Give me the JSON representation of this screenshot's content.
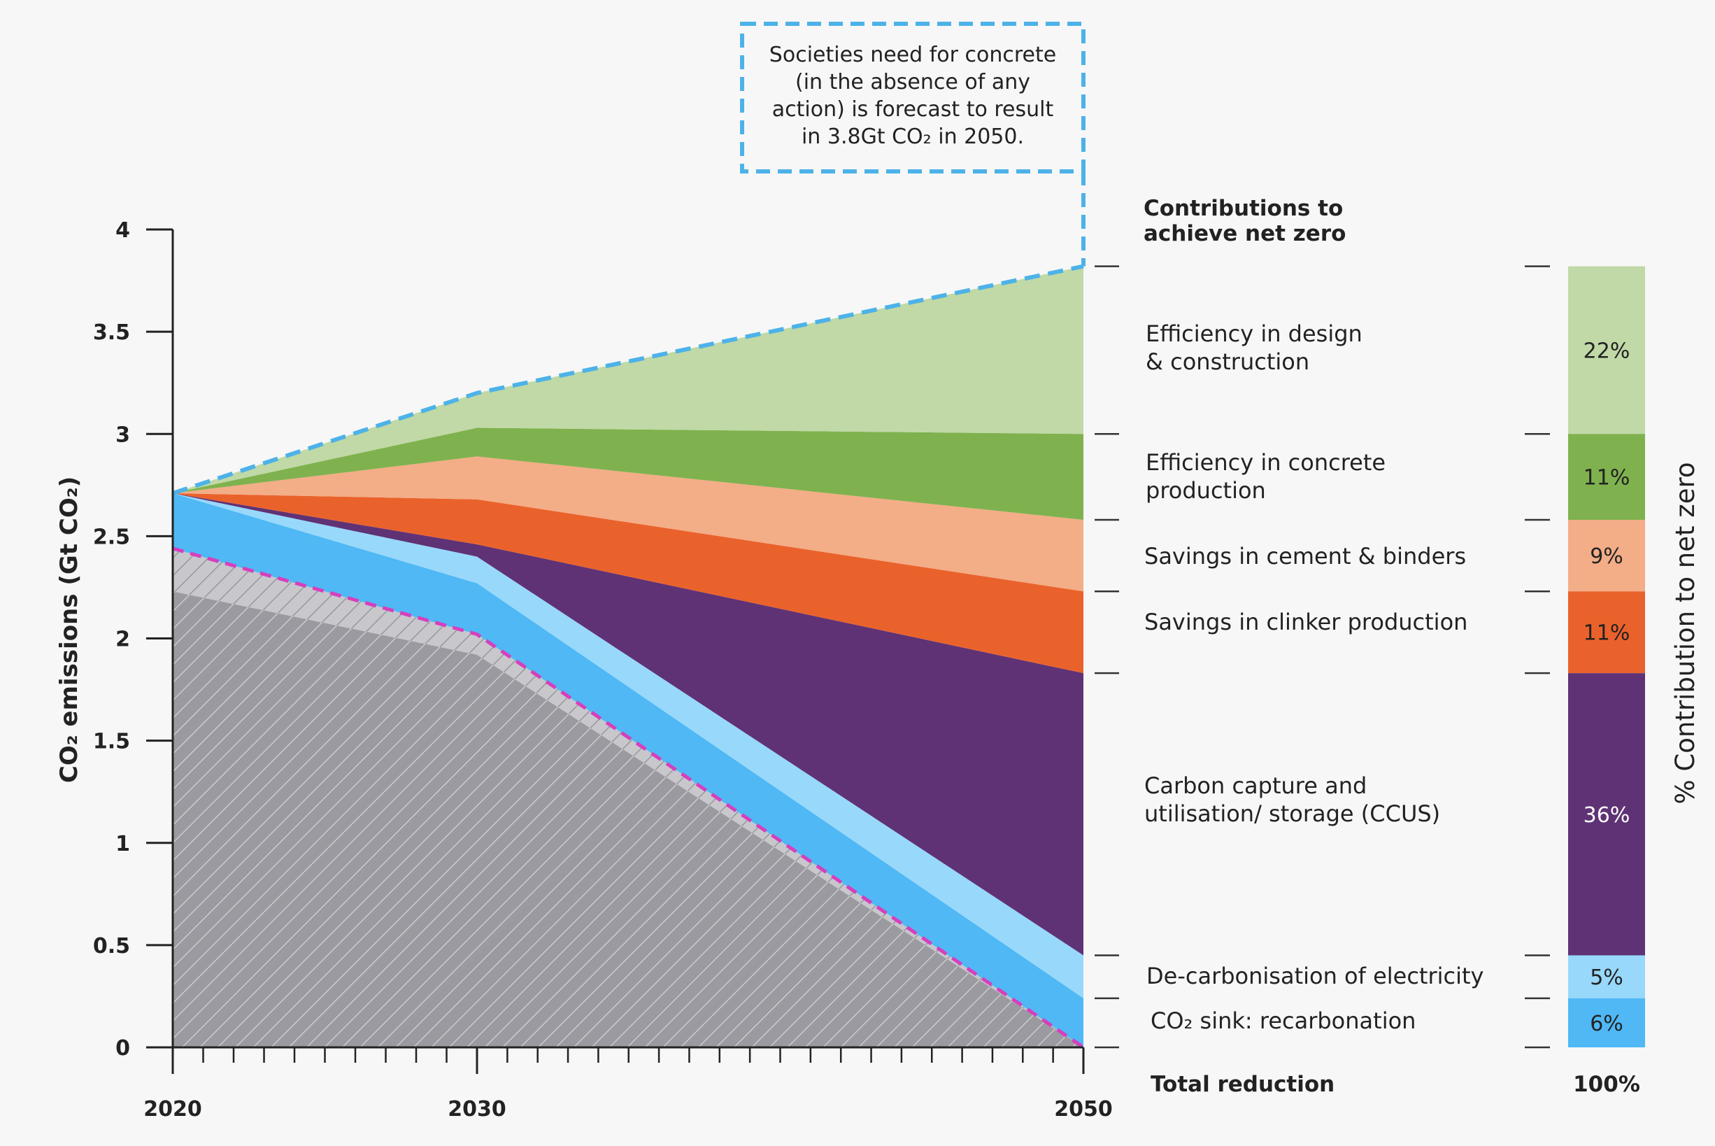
{
  "chart_data": {
    "type": "area",
    "title": "",
    "xlabel": "",
    "ylabel": "CO₂ emissions (Gt CO₂)",
    "x": [
      2020,
      2030,
      2050
    ],
    "x_ticks": [
      "2020",
      "2030",
      "2050"
    ],
    "ylim": [
      0,
      4
    ],
    "y_ticks": [
      "0",
      "0.5",
      "1",
      "1.5",
      "2",
      "2.5",
      "3",
      "3.5",
      "4"
    ],
    "grid": false,
    "forecast_line": {
      "values": [
        2.71,
        3.2,
        3.82
      ]
    },
    "net_line": {
      "values": [
        2.44,
        2.02,
        0.0
      ]
    },
    "residual_top": {
      "values": [
        2.23,
        1.92,
        0.0
      ]
    },
    "series": [
      {
        "name": "CO₂ sink: recarbonation",
        "color": "#4fb8f5",
        "lower": [
          2.44,
          2.02,
          0.0
        ],
        "upper": [
          2.71,
          2.27,
          0.24
        ],
        "share": "6%"
      },
      {
        "name": "De-carbonisation of electricity",
        "color": "#98d8fb",
        "lower": [
          2.71,
          2.27,
          0.24
        ],
        "upper": [
          2.71,
          2.4,
          0.45
        ],
        "share": "5%"
      },
      {
        "name": "Carbon capture and utilisation/ storage (CCUS)",
        "color": "#5f3275",
        "lower": [
          2.71,
          2.4,
          0.45
        ],
        "upper": [
          2.71,
          2.46,
          1.83
        ],
        "share": "36%"
      },
      {
        "name": "Savings in clinker production",
        "color": "#ea622b",
        "lower": [
          2.71,
          2.46,
          1.83
        ],
        "upper": [
          2.71,
          2.68,
          2.23
        ],
        "share": "11%"
      },
      {
        "name": "Savings in cement & binders",
        "color": "#f3ad87",
        "lower": [
          2.71,
          2.68,
          2.23
        ],
        "upper": [
          2.71,
          2.89,
          2.58
        ],
        "share": "9%"
      },
      {
        "name": "Efficiency in concrete production",
        "color": "#7fb24e",
        "lower": [
          2.71,
          2.89,
          2.58
        ],
        "upper": [
          2.71,
          3.03,
          3.0
        ],
        "share": "11%"
      },
      {
        "name": "Efficiency in design & construction",
        "color": "#c0d9a6",
        "lower": [
          2.71,
          3.03,
          3.0
        ],
        "upper": [
          2.71,
          3.2,
          3.82
        ],
        "share": "22%"
      }
    ],
    "annotation": [
      "Societies need for concrete",
      "(in the absence of any",
      "action) is forecast to result",
      "in 3.8Gt CO₂ in 2050."
    ],
    "contributions_title": [
      "Contributions to",
      "achieve net zero"
    ],
    "labels": [
      {
        "lines": [
          "Efficiency in design",
          "& construction"
        ]
      },
      {
        "lines": [
          "Efficiency in concrete",
          "production"
        ]
      },
      {
        "lines": [
          "Savings in cement & binders"
        ]
      },
      {
        "lines": [
          "Savings in clinker production"
        ]
      },
      {
        "lines": [
          "Carbon capture and",
          "utilisation/ storage (CCUS)"
        ]
      },
      {
        "lines": [
          "De-carbonisation of electricity"
        ]
      },
      {
        "lines": [
          "CO₂ sink: recarbonation"
        ]
      }
    ],
    "total_label": "Total reduction",
    "total_value": "100%",
    "bar_axis_label": "% Contribution to net zero",
    "colors": {
      "axis": "#222222",
      "forecast_dash": "#4db2e8",
      "net_dash": "#d63fbd",
      "residual": "#9a9aa0",
      "hatch_band": "#c7c7cc"
    }
  }
}
